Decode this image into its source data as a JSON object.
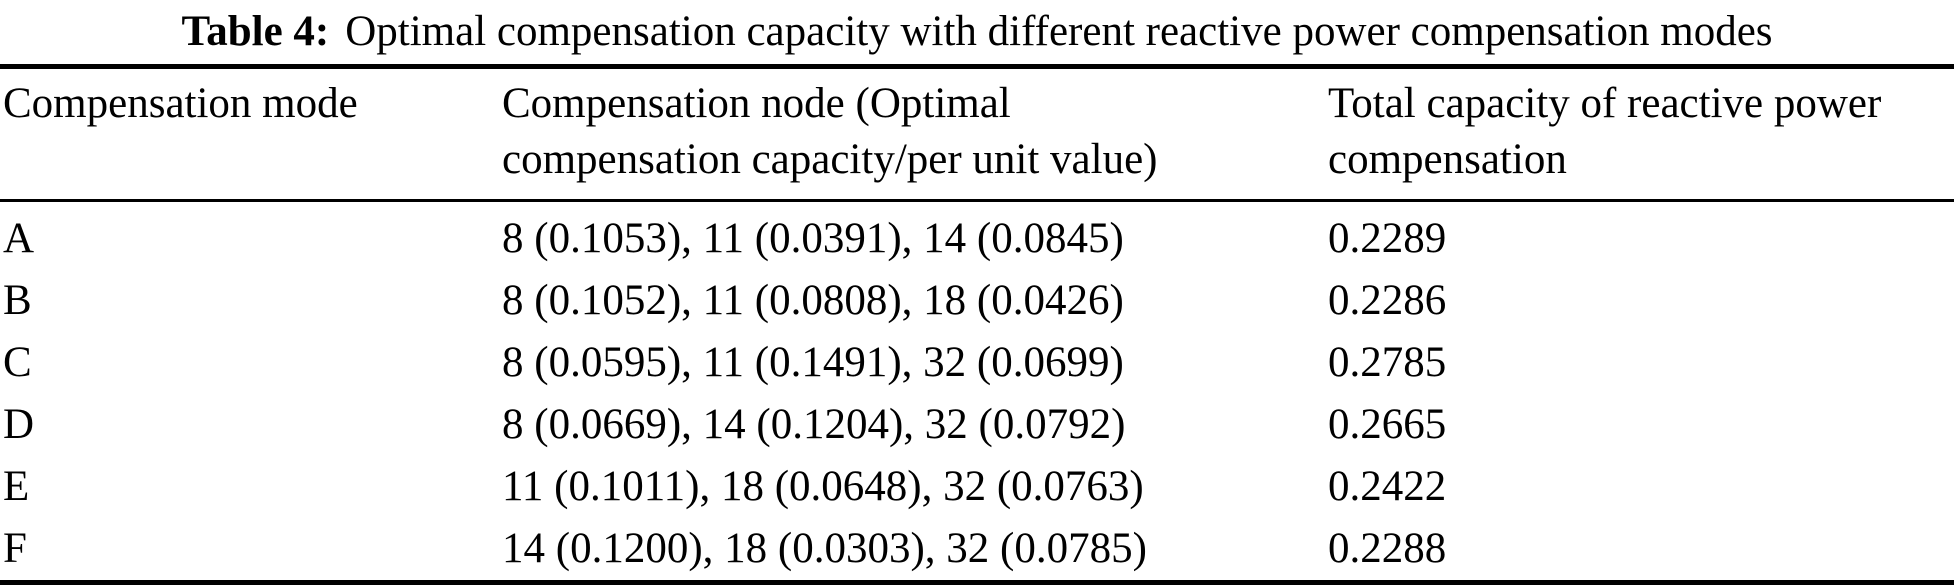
{
  "title": {
    "label": "Table 4:",
    "caption": "Optimal compensation capacity with different reactive power compensation modes"
  },
  "table": {
    "headers": [
      {
        "text": "Compensation mode"
      },
      {
        "text": "Compensation node (Optimal\ncompensation capacity/per unit value)"
      },
      {
        "text": "Total capacity of reactive power\ncompensation"
      }
    ],
    "rows": [
      {
        "mode": "A",
        "nodes": "8 (0.1053), 11 (0.0391), 14 (0.0845)",
        "total": "0.2289"
      },
      {
        "mode": "B",
        "nodes": "8 (0.1052), 11 (0.0808), 18 (0.0426)",
        "total": "0.2286"
      },
      {
        "mode": "C",
        "nodes": "8 (0.0595), 11 (0.1491), 32 (0.0699)",
        "total": "0.2785"
      },
      {
        "mode": "D",
        "nodes": "8 (0.0669), 14 (0.1204), 32 (0.0792)",
        "total": "0.2665"
      },
      {
        "mode": "E",
        "nodes": "11 (0.1011), 18 (0.0648), 32 (0.0763)",
        "total": "0.2422"
      },
      {
        "mode": "F",
        "nodes": "14 (0.1200), 18 (0.0303), 32 (0.0785)",
        "total": "0.2288"
      }
    ],
    "colors": {
      "text": "#000000",
      "background": "#ffffff",
      "rule": "#000000"
    }
  }
}
